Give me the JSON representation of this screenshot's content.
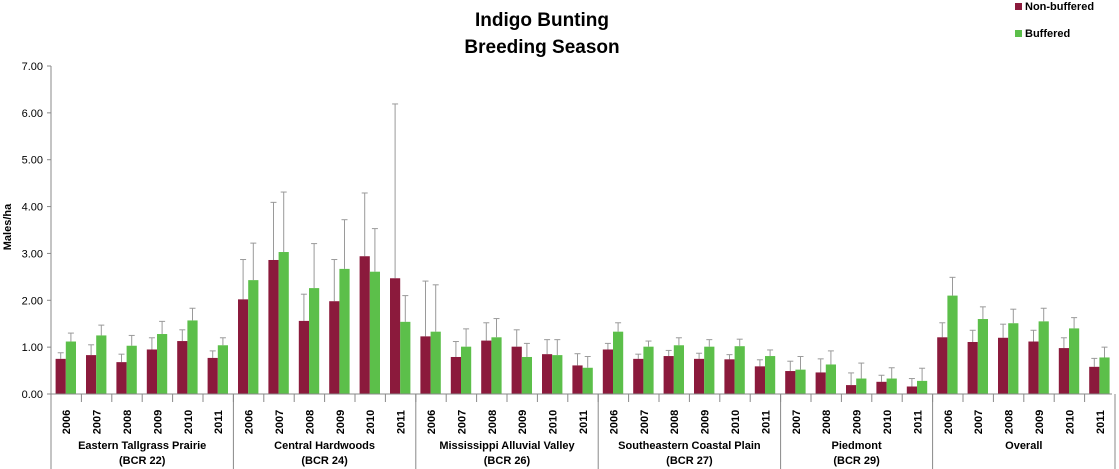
{
  "colors": {
    "nonbuffered": "#8b1a3c",
    "buffered": "#5cbf4a",
    "error": "#9a9a9a",
    "axis": "#888888"
  },
  "chart_data": {
    "type": "bar",
    "title": [
      "Indigo Bunting",
      "Breeding Season"
    ],
    "ylabel": "Males/ha",
    "ylim": [
      0,
      7
    ],
    "yticks": [
      "0.00",
      "1.00",
      "2.00",
      "3.00",
      "4.00",
      "5.00",
      "6.00",
      "7.00"
    ],
    "legend": {
      "position": "top-right",
      "entries": [
        "Non-buffered",
        "Buffered"
      ]
    },
    "groups": [
      {
        "name": "Eastern Tallgrass Prairie",
        "code": "(BCR 22)",
        "categories": [
          "2006",
          "2007",
          "2008",
          "2009",
          "2010",
          "2011"
        ],
        "nonbuffered": [
          0.75,
          0.83,
          0.68,
          0.95,
          1.13,
          0.77
        ],
        "nonbuffered_err": [
          0.88,
          1.05,
          0.85,
          1.2,
          1.37,
          0.92
        ],
        "buffered": [
          1.12,
          1.25,
          1.03,
          1.28,
          1.57,
          1.04
        ],
        "buffered_err": [
          1.3,
          1.47,
          1.25,
          1.55,
          1.83,
          1.2
        ]
      },
      {
        "name": "Central Hardwoods",
        "code": "(BCR 24)",
        "categories": [
          "2006",
          "2007",
          "2008",
          "2009",
          "2010",
          "2011"
        ],
        "nonbuffered": [
          2.02,
          2.86,
          1.56,
          1.98,
          2.94,
          2.47
        ],
        "nonbuffered_err": [
          2.87,
          4.09,
          2.13,
          2.87,
          4.29,
          6.19
        ],
        "buffered": [
          2.43,
          3.03,
          2.26,
          2.67,
          2.61,
          1.54
        ],
        "buffered_err": [
          3.22,
          4.31,
          3.21,
          3.72,
          3.53,
          2.1
        ]
      },
      {
        "name": "Mississippi Alluvial Valley",
        "code": "(BCR 26)",
        "categories": [
          "2006",
          "2007",
          "2008",
          "2009",
          "2010",
          "2011"
        ],
        "nonbuffered": [
          1.23,
          0.79,
          1.14,
          1.01,
          0.85,
          0.61
        ],
        "nonbuffered_err": [
          2.41,
          1.12,
          1.52,
          1.37,
          1.16,
          0.86
        ],
        "buffered": [
          1.33,
          1.01,
          1.21,
          0.79,
          0.83,
          0.56
        ],
        "buffered_err": [
          2.33,
          1.39,
          1.61,
          1.08,
          1.16,
          0.8
        ]
      },
      {
        "name": "Southeastern Coastal Plain",
        "code": "(BCR 27)",
        "categories": [
          "2006",
          "2007",
          "2008",
          "2009",
          "2010",
          "2011"
        ],
        "nonbuffered": [
          0.95,
          0.75,
          0.81,
          0.75,
          0.74,
          0.59
        ],
        "nonbuffered_err": [
          1.08,
          0.85,
          0.93,
          0.87,
          0.84,
          0.73
        ],
        "buffered": [
          1.33,
          1.01,
          1.04,
          1.01,
          1.02,
          0.81
        ],
        "buffered_err": [
          1.52,
          1.13,
          1.2,
          1.16,
          1.17,
          0.94
        ]
      },
      {
        "name": "Piedmont",
        "code": "(BCR 29)",
        "categories": [
          "2007",
          "2008",
          "2009",
          "2010",
          "2011"
        ],
        "nonbuffered": [
          0.49,
          0.46,
          0.19,
          0.26,
          0.16
        ],
        "nonbuffered_err": [
          0.7,
          0.75,
          0.45,
          0.4,
          0.33
        ],
        "buffered": [
          0.52,
          0.63,
          0.33,
          0.33,
          0.28
        ],
        "buffered_err": [
          0.8,
          0.92,
          0.66,
          0.56,
          0.55
        ]
      },
      {
        "name": "Overall",
        "code": "",
        "categories": [
          "2006",
          "2007",
          "2008",
          "2009",
          "2010",
          "2011"
        ],
        "nonbuffered": [
          1.21,
          1.11,
          1.2,
          1.12,
          0.98,
          0.58
        ],
        "nonbuffered_err": [
          1.52,
          1.36,
          1.49,
          1.36,
          1.2,
          0.76
        ],
        "buffered": [
          2.1,
          1.6,
          1.51,
          1.55,
          1.4,
          0.78
        ],
        "buffered_err": [
          2.49,
          1.86,
          1.81,
          1.83,
          1.63,
          1.0
        ]
      }
    ]
  }
}
